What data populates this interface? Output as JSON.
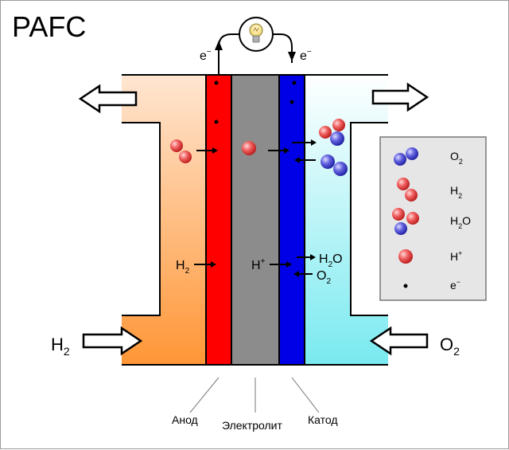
{
  "title": "PAFC",
  "electron_label": "e",
  "minus_sign": "−",
  "plus_sign": "+",
  "sub_2": "2",
  "h2_label": "H",
  "o2_label": "O",
  "h2o_label_main": "H",
  "h2o_label_tail": "O",
  "hplus_label": "H",
  "inputs": {
    "anode_gas": "H",
    "cathode_gas": "O"
  },
  "bottom_labels": {
    "anode": "Анод",
    "electrolyte": "Электролит",
    "cathode": "Катод"
  },
  "legend": {
    "o2": "O",
    "h2": "H",
    "h2o": "H",
    "h2o_tail": "O",
    "hplus": "H",
    "electron": "e"
  },
  "colors": {
    "anode": "#ff0000",
    "electrolyte": "#8c8c8c",
    "cathode": "#0000e6",
    "anode_gas_top": "#ffe3cc",
    "anode_gas_bottom": "#ff9a3a",
    "cathode_gas_top": "#ffffff",
    "cathode_gas_bottom": "#7fecf1",
    "hydrogen_atom": "#e04848",
    "oxygen_atom": "#4a4ad0",
    "legend_bg": "#e6e6e6"
  },
  "icons": [
    "light-bulb-icon",
    "arrow-icon"
  ]
}
